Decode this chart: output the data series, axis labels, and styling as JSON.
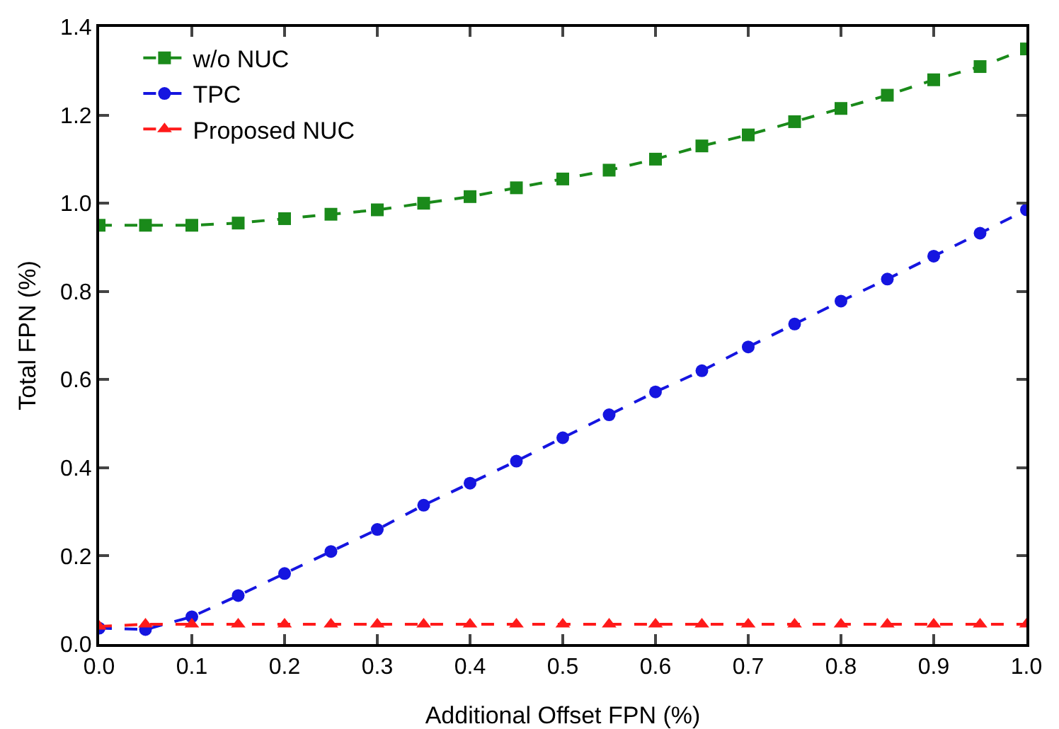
{
  "chart_data": {
    "type": "line",
    "xlabel": "Additional Offset FPN (%)",
    "ylabel": "Total FPN (%)",
    "x": [
      0,
      0.05,
      0.1,
      0.15,
      0.2,
      0.25,
      0.3,
      0.35,
      0.4,
      0.45,
      0.5,
      0.55,
      0.6,
      0.65,
      0.7,
      0.75,
      0.8,
      0.85,
      0.9,
      0.95,
      1.0
    ],
    "series": [
      {
        "name": "w/o NUC",
        "color": "#1a8a1a",
        "marker": "square",
        "values": [
          0.95,
          0.95,
          0.95,
          0.955,
          0.965,
          0.975,
          0.985,
          1.0,
          1.015,
          1.035,
          1.055,
          1.075,
          1.1,
          1.13,
          1.155,
          1.185,
          1.215,
          1.245,
          1.28,
          1.31,
          1.35
        ]
      },
      {
        "name": "TPC",
        "color": "#1515e0",
        "marker": "circle",
        "values": [
          0.036,
          0.033,
          0.062,
          0.11,
          0.16,
          0.21,
          0.26,
          0.315,
          0.365,
          0.415,
          0.468,
          0.52,
          0.572,
          0.62,
          0.674,
          0.726,
          0.778,
          0.828,
          0.88,
          0.932,
          0.985
        ]
      },
      {
        "name": "Proposed NUC",
        "color": "#ff1a1a",
        "marker": "triangle",
        "values": [
          0.04,
          0.045,
          0.045,
          0.045,
          0.045,
          0.045,
          0.045,
          0.045,
          0.045,
          0.045,
          0.045,
          0.045,
          0.045,
          0.045,
          0.045,
          0.045,
          0.045,
          0.045,
          0.045,
          0.045,
          0.045
        ]
      }
    ],
    "xlim": [
      0,
      1
    ],
    "ylim": [
      0,
      1.4
    ],
    "xticks": [
      {
        "value": 0,
        "label": "0.0"
      },
      0.1,
      0.2,
      0.3,
      0.4,
      0.5,
      0.6,
      0.7,
      0.8,
      0.9,
      {
        "value": 1,
        "label": "1.0"
      }
    ],
    "yticks": [
      {
        "value": 0,
        "label": "0.0"
      },
      0.2,
      0.4,
      0.6,
      0.8,
      {
        "value": 1,
        "label": "1.0"
      },
      1.2,
      1.4
    ],
    "line_style": "dashed",
    "grid": false,
    "legend": "top left"
  }
}
